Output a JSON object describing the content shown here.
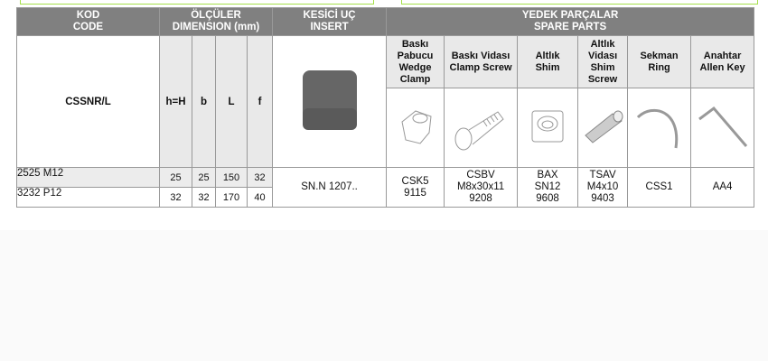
{
  "header": {
    "code": [
      "KOD",
      "CODE"
    ],
    "dimension": [
      "ÖLÇÜLER",
      "DIMENSION (mm)"
    ],
    "insert": [
      "KESİCİ UÇ",
      "INSERT"
    ],
    "spare": [
      "YEDEK PARÇALAR",
      "SPARE PARTS"
    ]
  },
  "code_name": "CSSNR/L",
  "dim_cols": [
    "h=H",
    "b",
    "L",
    "f"
  ],
  "spare_parts": [
    {
      "name": [
        "Baskı",
        "Pabucu",
        "Wedge",
        "Clamp"
      ],
      "icon": "wedge-clamp-icon",
      "value": [
        "CSK5",
        "9115"
      ]
    },
    {
      "name": [
        "Baskı Vidası",
        "Clamp Screw"
      ],
      "icon": "clamp-screw-icon",
      "value": [
        "CSBV",
        "M8x30x11",
        "9208"
      ]
    },
    {
      "name": [
        "Altlık",
        "Shim"
      ],
      "icon": "shim-icon",
      "value": [
        "BAX",
        "SN12",
        "9608"
      ]
    },
    {
      "name": [
        "Altlık",
        "Vidası",
        "Shim",
        "Screw"
      ],
      "icon": "shim-screw-icon",
      "value": [
        "TSAV",
        "M4x10",
        "9403"
      ]
    },
    {
      "name": [
        "Sekman",
        "Ring"
      ],
      "icon": "ring-icon",
      "value": [
        "CSS1"
      ]
    },
    {
      "name": [
        "Anahtar",
        "Allen Key"
      ],
      "icon": "allen-key-icon",
      "value": [
        "AA4"
      ]
    }
  ],
  "rows": [
    {
      "code": "2525 M12",
      "dims": [
        "25",
        "25",
        "150",
        "32"
      ]
    },
    {
      "code": "3232 P12",
      "dims": [
        "32",
        "32",
        "170",
        "40"
      ]
    }
  ],
  "insert_code": "SN.N 1207..",
  "colors": {
    "header_bg": "#808080",
    "cell_bg": "#e9e9e9",
    "accent_outline": "#a6e04a"
  }
}
